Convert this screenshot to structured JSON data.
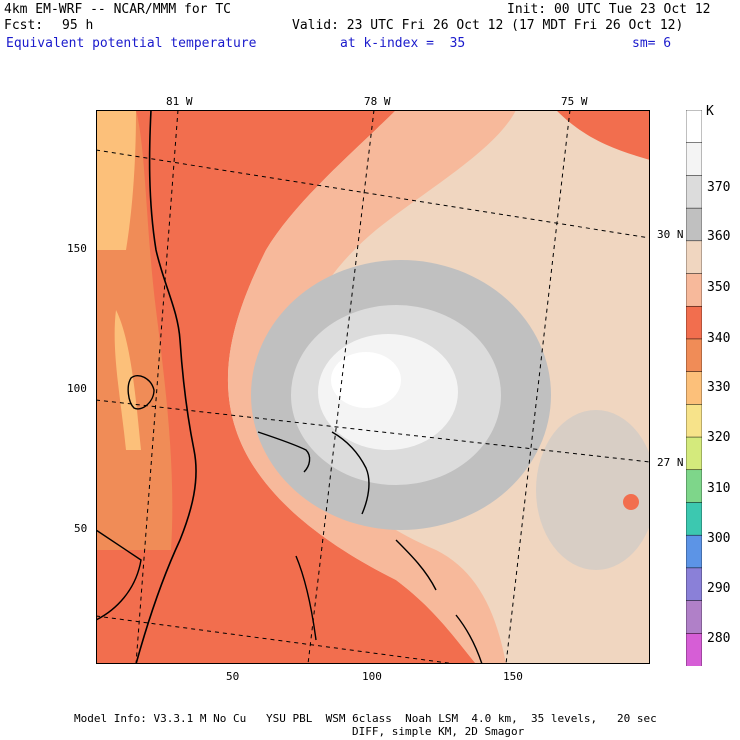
{
  "header": {
    "model": "4km EM-WRF -- NCAR/MMM for TC",
    "forecast_label": "Fcst:",
    "forecast_hours": "95 h",
    "init": "Init: 00 UTC Tue 23 Oct 12",
    "valid": "Valid: 23 UTC Fri 26 Oct 12 (17 MDT Fri 26 Oct 12)",
    "field": "Equivalent potential temperature",
    "kindex": "at k-index =  35",
    "sm": "sm= 6"
  },
  "map": {
    "top_lon_labels": [
      "81 W",
      "78 W",
      "75 W"
    ],
    "right_lat_labels": [
      "30 N",
      "27 N"
    ],
    "left_axis_ticks": [
      "150",
      "100",
      "50"
    ],
    "bottom_axis_ticks": [
      "50",
      "100",
      "150"
    ]
  },
  "legend": {
    "unit": "K",
    "labels": [
      "370",
      "360",
      "350",
      "340",
      "330",
      "320",
      "310",
      "300",
      "290",
      "280"
    ],
    "colors": [
      "#ffffff",
      "#f4f4f4",
      "#dcdcdc",
      "#c0c0c0",
      "#f0d6c0",
      "#f7b99b",
      "#f26e4e",
      "#f08c57",
      "#fcc07a",
      "#f7e38a",
      "#d4ea7c",
      "#7ed68a",
      "#3cc8b0",
      "#5c94e6",
      "#8a80d8",
      "#b080c8",
      "#d65ed6"
    ]
  },
  "footer": {
    "line1": "Model Info: V3.3.1 M No Cu   YSU PBL  WSM 6class  Noah LSM  4.0 km,  35 levels,   20 sec",
    "line2": "DIFF, simple KM, 2D Smagor"
  }
}
